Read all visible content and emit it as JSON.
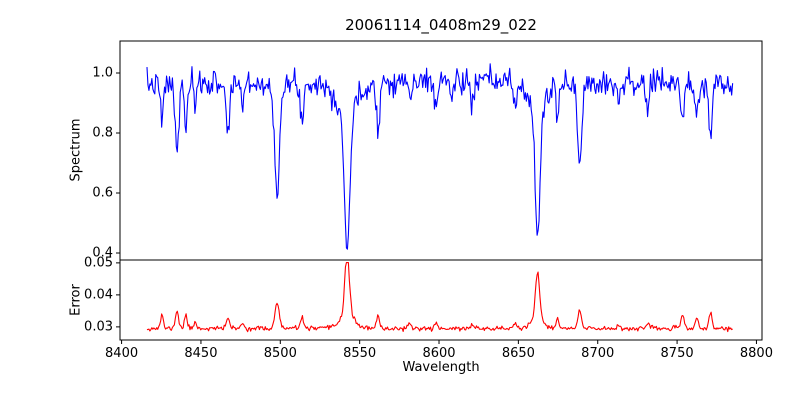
{
  "figure": {
    "title": "20061114_0408m29_022",
    "background": "#ffffff"
  },
  "axes": {
    "xlabel": "Wavelength",
    "xlim": [
      8399,
      8803.5
    ],
    "xticks": [
      8400,
      8450,
      8500,
      8550,
      8600,
      8650,
      8700,
      8750,
      8800
    ],
    "xtick_labels": [
      "8400",
      "8450",
      "8500",
      "8550",
      "8600",
      "8650",
      "8700",
      "8750",
      "8800"
    ],
    "spine_color": "#000000",
    "grid": false,
    "legend": false
  },
  "chart_data": [
    {
      "type": "line",
      "name": "spectrum",
      "title": "20061114_0408m29_022",
      "ylabel": "Spectrum",
      "color": "#0000ff",
      "x_start": 8416,
      "x_end": 8785,
      "n_points": 600,
      "ylim": [
        0.3767,
        1.1067
      ],
      "yticks": [
        1.0,
        0.8,
        0.6,
        0.4
      ],
      "ytick_labels": [
        "1.0",
        "0.8",
        "0.6",
        "0.4"
      ],
      "continuum": 0.972,
      "continuum_curvature": -3e-07,
      "continuum_ref": 8600,
      "noise_sigma": 0.021,
      "rng_seed": 7,
      "absorption_lines": [
        {
          "center": 8425.4,
          "depth": 0.13,
          "sigma": 0.9
        },
        {
          "center": 8434.9,
          "depth": 0.24,
          "sigma": 1.1
        },
        {
          "center": 8440.5,
          "depth": 0.15,
          "sigma": 0.9
        },
        {
          "center": 8446.5,
          "depth": 0.09,
          "sigma": 0.8
        },
        {
          "center": 8467.0,
          "depth": 0.17,
          "sigma": 1.1
        },
        {
          "center": 8476.3,
          "depth": 0.08,
          "sigma": 0.8
        },
        {
          "center": 8498.0,
          "depth": 0.32,
          "sigma": 1.4,
          "wing_depth": 0.04,
          "wing_sigma": 5.0
        },
        {
          "center": 8513.8,
          "depth": 0.14,
          "sigma": 1.0
        },
        {
          "center": 8542.1,
          "depth": 0.46,
          "sigma": 1.7,
          "wing_depth": 0.1,
          "wing_sigma": 7.0
        },
        {
          "center": 8561.6,
          "depth": 0.15,
          "sigma": 1.0
        },
        {
          "center": 8582.0,
          "depth": 0.07,
          "sigma": 0.8
        },
        {
          "center": 8598.0,
          "depth": 0.08,
          "sigma": 0.9
        },
        {
          "center": 8608.0,
          "depth": 0.06,
          "sigma": 0.8
        },
        {
          "center": 8621.0,
          "depth": 0.09,
          "sigma": 0.9
        },
        {
          "center": 8648.0,
          "depth": 0.09,
          "sigma": 0.9
        },
        {
          "center": 8662.1,
          "depth": 0.43,
          "sigma": 1.6,
          "wing_depth": 0.08,
          "wing_sigma": 6.0
        },
        {
          "center": 8674.8,
          "depth": 0.13,
          "sigma": 0.9
        },
        {
          "center": 8688.6,
          "depth": 0.29,
          "sigma": 1.3
        },
        {
          "center": 8713.0,
          "depth": 0.06,
          "sigma": 0.8
        },
        {
          "center": 8731.4,
          "depth": 0.1,
          "sigma": 0.9
        },
        {
          "center": 8753.4,
          "depth": 0.13,
          "sigma": 1.0
        },
        {
          "center": 8762.3,
          "depth": 0.13,
          "sigma": 0.9
        },
        {
          "center": 8771.1,
          "depth": 0.18,
          "sigma": 1.0
        }
      ]
    },
    {
      "type": "line",
      "name": "error",
      "ylabel": "Error",
      "xlabel": "Wavelength",
      "color": "#ff0000",
      "x_start": 8416,
      "x_end": 8785,
      "n_points": 600,
      "ylim": [
        0.0259,
        0.0509
      ],
      "yticks": [
        0.05,
        0.04,
        0.03
      ],
      "ytick_labels": [
        "0.05",
        "0.04",
        "0.03"
      ],
      "baseline": 0.0295,
      "noise_sigma": 0.00035,
      "rng_seed": 11,
      "peaks": [
        {
          "center": 8425.4,
          "amp": 0.004,
          "sigma": 0.9
        },
        {
          "center": 8434.9,
          "amp": 0.0056,
          "sigma": 1.0
        },
        {
          "center": 8440.5,
          "amp": 0.0042,
          "sigma": 0.9
        },
        {
          "center": 8446.5,
          "amp": 0.0022,
          "sigma": 0.8
        },
        {
          "center": 8467.0,
          "amp": 0.0035,
          "sigma": 1.0
        },
        {
          "center": 8476.3,
          "amp": 0.0018,
          "sigma": 0.8
        },
        {
          "center": 8498.0,
          "amp": 0.0082,
          "sigma": 1.3
        },
        {
          "center": 8513.8,
          "amp": 0.0036,
          "sigma": 1.0
        },
        {
          "center": 8542.1,
          "amp": 0.0195,
          "sigma": 1.4
        },
        {
          "center": 8542.1,
          "amp": 0.0045,
          "sigma": 4.5
        },
        {
          "center": 8561.6,
          "amp": 0.0035,
          "sigma": 1.0
        },
        {
          "center": 8582.0,
          "amp": 0.0015,
          "sigma": 0.8
        },
        {
          "center": 8598.0,
          "amp": 0.0018,
          "sigma": 0.9
        },
        {
          "center": 8621.0,
          "amp": 0.0015,
          "sigma": 0.9
        },
        {
          "center": 8648.0,
          "amp": 0.0018,
          "sigma": 0.9
        },
        {
          "center": 8662.1,
          "amp": 0.014,
          "sigma": 1.3
        },
        {
          "center": 8662.1,
          "amp": 0.003,
          "sigma": 4.0
        },
        {
          "center": 8674.8,
          "amp": 0.0028,
          "sigma": 0.9
        },
        {
          "center": 8688.6,
          "amp": 0.0055,
          "sigma": 1.1
        },
        {
          "center": 8713.0,
          "amp": 0.0012,
          "sigma": 0.8
        },
        {
          "center": 8731.4,
          "amp": 0.0018,
          "sigma": 0.9
        },
        {
          "center": 8753.4,
          "amp": 0.0042,
          "sigma": 1.0
        },
        {
          "center": 8762.3,
          "amp": 0.0035,
          "sigma": 0.9
        },
        {
          "center": 8771.1,
          "amp": 0.0045,
          "sigma": 1.0
        }
      ]
    }
  ]
}
